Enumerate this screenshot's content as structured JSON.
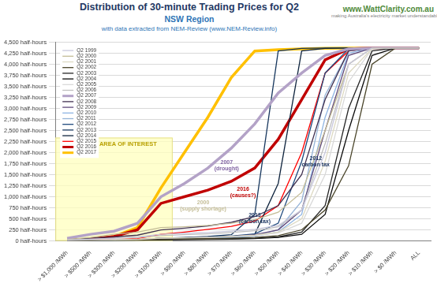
{
  "chart_data": {
    "type": "line",
    "title": "Distribution of 30-minute Trading Prices for Q2",
    "subtitle": "NSW Region",
    "source": "with data extracted from NEM-Review (www.NEM-Review.info)",
    "logo": {
      "text": "www.WattClarity.com.au",
      "tagline": "making Australia's electricity market understandable"
    },
    "categories": [
      "> $1,000 /MWh",
      "> $500 /MWh",
      "> $300 /MWh",
      "> $200 /MWh",
      "> $100 /MWh",
      "> $90 /MWh",
      "> $80 /MWh",
      "> $70 /MWh",
      "> $60 /MWh",
      "> $50 /MWh",
      "> $40 /MWh",
      "> $30 /MWh",
      "> $20 /MWh",
      "> $10 /MWh",
      "> $0 /MWh",
      "ALL"
    ],
    "series": [
      {
        "name": "Q2 1999",
        "color": "#c9c9dd",
        "values": [
          20,
          40,
          60,
          90,
          150,
          170,
          190,
          220,
          260,
          350,
          700,
          2000,
          4000,
          4368,
          4368,
          4368
        ]
      },
      {
        "name": "Q2 2000",
        "color": "#c4bd97",
        "values": [
          30,
          80,
          150,
          200,
          300,
          320,
          350,
          400,
          480,
          650,
          1100,
          2500,
          4000,
          4368,
          4368,
          4368
        ]
      },
      {
        "name": "Q2 2001",
        "color": "#ddd9c3",
        "values": [
          5,
          10,
          20,
          30,
          60,
          70,
          80,
          100,
          130,
          200,
          500,
          1800,
          3800,
          4350,
          4368,
          4368
        ]
      },
      {
        "name": "Q2 2002",
        "color": "#4a452a",
        "values": [
          5,
          10,
          15,
          20,
          40,
          45,
          50,
          60,
          80,
          120,
          250,
          700,
          1700,
          4000,
          4368,
          4368
        ]
      },
      {
        "name": "Q2 2003",
        "color": "#262626",
        "values": [
          5,
          10,
          15,
          20,
          30,
          35,
          40,
          50,
          60,
          90,
          200,
          800,
          3000,
          4300,
          4368,
          4368
        ]
      },
      {
        "name": "Q2 2004",
        "color": "#0c0c0c",
        "values": [
          0,
          5,
          10,
          15,
          25,
          30,
          35,
          40,
          50,
          80,
          150,
          600,
          2500,
          4200,
          4368,
          4368
        ]
      },
      {
        "name": "Q2 2005",
        "color": "#d9d9d9",
        "values": [
          10,
          20,
          30,
          40,
          60,
          70,
          80,
          100,
          120,
          180,
          400,
          1500,
          3600,
          4350,
          4368,
          4368
        ]
      },
      {
        "name": "Q2 2006",
        "color": "#bfbfbf",
        "values": [
          20,
          40,
          60,
          80,
          120,
          140,
          160,
          190,
          230,
          320,
          700,
          2200,
          4000,
          4368,
          4368,
          4368
        ]
      },
      {
        "name": "Q2 2007",
        "color": "#b3a2c7",
        "line_style": "bold",
        "values": [
          60,
          150,
          220,
          400,
          1000,
          1300,
          1650,
          2100,
          2650,
          3350,
          3800,
          4200,
          4350,
          4368,
          4368,
          4368
        ]
      },
      {
        "name": "Q2 2008",
        "color": "#403151",
        "values": [
          30,
          60,
          90,
          130,
          250,
          290,
          340,
          420,
          550,
          800,
          1500,
          3200,
          4300,
          4368,
          4368,
          4368
        ]
      },
      {
        "name": "Q2 2009",
        "color": "#604a7b",
        "values": [
          5,
          10,
          20,
          30,
          60,
          70,
          80,
          100,
          140,
          250,
          700,
          2500,
          4200,
          4368,
          4368,
          4368
        ]
      },
      {
        "name": "Q2 2010",
        "color": "#8eb4e3",
        "values": [
          5,
          10,
          15,
          20,
          40,
          50,
          60,
          80,
          110,
          200,
          600,
          2800,
          4250,
          4368,
          4368,
          4368
        ]
      },
      {
        "name": "Q2 2011",
        "color": "#95b3d7",
        "values": [
          5,
          10,
          15,
          20,
          40,
          50,
          60,
          80,
          120,
          250,
          900,
          3300,
          4300,
          4368,
          4368,
          4368
        ]
      },
      {
        "name": "Q2 2012",
        "color": "#1f497d",
        "values": [
          5,
          10,
          20,
          30,
          60,
          70,
          90,
          110,
          160,
          400,
          1800,
          3800,
          4350,
          4368,
          4368,
          4368
        ]
      },
      {
        "name": "Q2 2013",
        "color": "#17375e",
        "values": [
          5,
          10,
          20,
          30,
          60,
          80,
          100,
          140,
          600,
          4300,
          4360,
          4368,
          4368,
          4368,
          4368,
          4368
        ]
      },
      {
        "name": "Q2 2014",
        "color": "#0f243e",
        "values": [
          0,
          5,
          10,
          15,
          30,
          40,
          50,
          70,
          150,
          1300,
          4300,
          4360,
          4368,
          4368,
          4368,
          4368
        ]
      },
      {
        "name": "Q2 2015",
        "color": "#ff0000",
        "values": [
          5,
          15,
          30,
          50,
          150,
          200,
          260,
          330,
          450,
          800,
          2000,
          3800,
          4300,
          4368,
          4368,
          4368
        ]
      },
      {
        "name": "Q2 2016",
        "color": "#c00000",
        "line_style": "bold",
        "values": [
          10,
          40,
          100,
          250,
          850,
          1000,
          1150,
          1350,
          1650,
          2300,
          3200,
          4100,
          4350,
          4368,
          4368,
          4368
        ]
      },
      {
        "name": "Q2 2017",
        "color": "#ffc000",
        "line_style": "bold",
        "values": [
          10,
          30,
          100,
          300,
          1200,
          2000,
          2800,
          3700,
          4300,
          4330,
          4350,
          4360,
          4365,
          4368,
          4368,
          4368
        ]
      }
    ],
    "ylim": [
      0,
      4500
    ],
    "yticks": [
      {
        "value": 0,
        "label": "0 half-hours"
      },
      {
        "value": 250,
        "label": "250 half-hours"
      },
      {
        "value": 500,
        "label": "500 half-hours"
      },
      {
        "value": 750,
        "label": "750 half-hours"
      },
      {
        "value": 1000,
        "label": "1,000 half-hours"
      },
      {
        "value": 1250,
        "label": "1,250 half-hours"
      },
      {
        "value": 1500,
        "label": "1,500 half-hours"
      },
      {
        "value": 1750,
        "label": "1,750 half-hours"
      },
      {
        "value": 2000,
        "label": "2,000 half-hours"
      },
      {
        "value": 2250,
        "label": "2,250 half-hours"
      },
      {
        "value": 2500,
        "label": "2,500 half-hours"
      },
      {
        "value": 2750,
        "label": "2,750 half-hours"
      },
      {
        "value": 3000,
        "label": "3,000 half-hours"
      },
      {
        "value": 3250,
        "label": "3,250 half-hours"
      },
      {
        "value": 3500,
        "label": "3,500 half-hours"
      },
      {
        "value": 3750,
        "label": "3,750 half-hours"
      },
      {
        "value": 4000,
        "label": "4,000 half-hours"
      },
      {
        "value": 4250,
        "label": "4,250 half-hours"
      },
      {
        "value": 4500,
        "label": "4,500 half-hours"
      }
    ],
    "grid": "y",
    "legend": "upper left",
    "highlight": {
      "label": "AREA OF INTEREST",
      "categories": [
        "> $1,000 /MWh",
        "> $100 /MWh"
      ]
    },
    "annotations": [
      {
        "text": [
          "2007",
          "(drought)"
        ],
        "color": "#8064a2"
      },
      {
        "text": [
          "2016",
          "(causes?)"
        ],
        "color": "#c00000"
      },
      {
        "text": [
          "2000",
          "(supply shortage)"
        ],
        "color": "#c4bd97"
      },
      {
        "text": [
          "2012",
          "carbon tax"
        ],
        "color": "#1f3864"
      },
      {
        "text": [
          "2013",
          "(carbon tax)"
        ],
        "color": "#1f3864"
      }
    ]
  }
}
